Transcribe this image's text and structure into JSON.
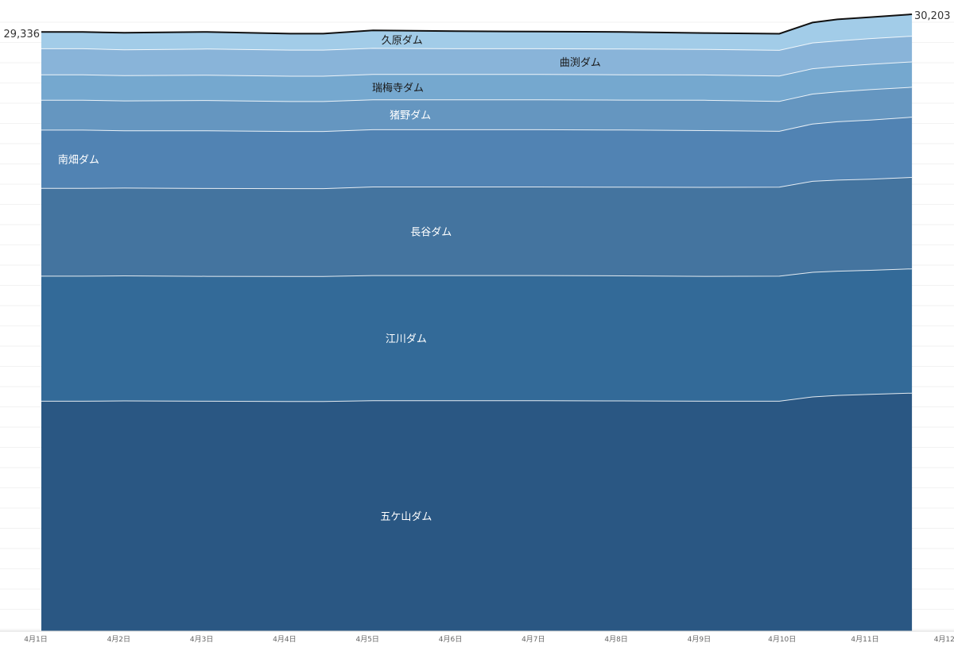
{
  "chart_data": {
    "type": "area",
    "stacked": true,
    "title": "",
    "xlabel": "",
    "ylabel": "",
    "x": [
      "4月1日",
      "4月1日12時",
      "4月2日",
      "4月3日",
      "4月4日",
      "4月4日12時",
      "4月5日",
      "4月6日",
      "4月7日",
      "4月8日",
      "4月9日",
      "4月9日20時",
      "4月10日",
      "4月10日12時",
      "4月11日",
      "4月11日12時"
    ],
    "x_ticks": [
      "4月1日",
      "4月2日",
      "4月3日",
      "4月4日",
      "4月5日",
      "4月6日",
      "4月7日",
      "4月8日",
      "4月9日",
      "4月10日",
      "4月11日",
      "4月12日"
    ],
    "ylim": [
      0,
      30203
    ],
    "grid": false,
    "legend": "none",
    "series": [
      {
        "name": "五ケ山ダム",
        "color": "#2a5783",
        "label_color": "#ffffff",
        "values": [
          11257,
          11257,
          11271,
          11257,
          11241,
          11241,
          11286,
          11286,
          11286,
          11271,
          11257,
          11257,
          11468,
          11542,
          11590,
          11654
        ]
      },
      {
        "name": "江川ダム",
        "color": "#336a98",
        "label_color": "#ffffff",
        "values": [
          6124,
          6124,
          6124,
          6116,
          6124,
          6124,
          6124,
          6124,
          6124,
          6124,
          6116,
          6124,
          6100,
          6084,
          6076,
          6084
        ]
      },
      {
        "name": "長谷ダム",
        "color": "#44749f",
        "label_color": "#ffffff",
        "values": [
          4300,
          4300,
          4300,
          4300,
          4300,
          4300,
          4340,
          4340,
          4340,
          4340,
          4355,
          4355,
          4458,
          4458,
          4458,
          4476
        ]
      },
      {
        "name": "南畑ダム",
        "color": "#5183b3",
        "label_color": "#ffffff",
        "values": [
          2850,
          2850,
          2800,
          2822,
          2800,
          2800,
          2800,
          2800,
          2800,
          2800,
          2779,
          2736,
          2806,
          2855,
          2902,
          2950
        ]
      },
      {
        "name": "猪野ダム",
        "color": "#6596c0",
        "label_color": "#ffffff",
        "values": [
          1466,
          1466,
          1466,
          1486,
          1466,
          1466,
          1466,
          1466,
          1466,
          1466,
          1488,
          1466,
          1466,
          1466,
          1489,
          1466
        ]
      },
      {
        "name": "瑞梅寺ダム",
        "color": "#75a8cf",
        "label_color": "#1a1a1a",
        "values": [
          1240,
          1240,
          1240,
          1240,
          1240,
          1240,
          1240,
          1240,
          1240,
          1240,
          1240,
          1240,
          1240,
          1240,
          1240,
          1240
        ]
      },
      {
        "name": "曲渕ダム",
        "color": "#89b4d9",
        "label_color": "#1a1a1a",
        "values": [
          1280,
          1280,
          1260,
          1280,
          1280,
          1280,
          1280,
          1260,
          1260,
          1260,
          1250,
          1260,
          1260,
          1250,
          1260,
          1260
        ]
      },
      {
        "name": "久原ダム",
        "color": "#a2cce8",
        "label_color": "#1a1a1a",
        "values": [
          819,
          819,
          839,
          839,
          802,
          802,
          880,
          859,
          839,
          839,
          799,
          811,
          1000,
          1060,
          1050,
          1073
        ]
      }
    ],
    "total_start_label": "29,336",
    "total_end_label": "30,203"
  }
}
